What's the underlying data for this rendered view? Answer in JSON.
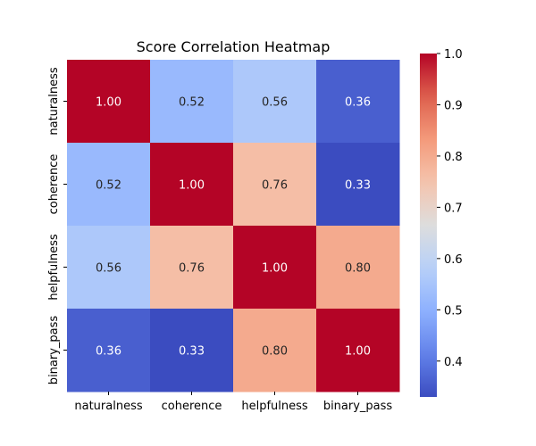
{
  "chart_data": {
    "type": "heatmap",
    "title": "Score Correlation Heatmap",
    "x_categories": [
      "naturalness",
      "coherence",
      "helpfulness",
      "binary_pass"
    ],
    "y_categories": [
      "naturalness",
      "coherence",
      "helpfulness",
      "binary_pass"
    ],
    "values": [
      [
        1.0,
        0.52,
        0.56,
        0.36
      ],
      [
        0.52,
        1.0,
        0.76,
        0.33
      ],
      [
        0.56,
        0.76,
        1.0,
        0.8
      ],
      [
        0.36,
        0.33,
        0.8,
        1.0
      ]
    ],
    "cell_labels": [
      [
        "1.00",
        "0.52",
        "0.56",
        "0.36"
      ],
      [
        "0.52",
        "1.00",
        "0.76",
        "0.33"
      ],
      [
        "0.56",
        "0.76",
        "1.00",
        "0.80"
      ],
      [
        "0.36",
        "0.33",
        "0.80",
        "1.00"
      ]
    ],
    "colorbar": {
      "min": 0.33,
      "max": 1.0,
      "ticks": [
        0.4,
        0.5,
        0.6,
        0.7,
        0.8,
        0.9,
        1.0
      ],
      "tick_labels": [
        "0.4",
        "0.5",
        "0.6",
        "0.7",
        "0.8",
        "0.9",
        "1.0"
      ],
      "colormap": "coolwarm"
    },
    "xlabel": "",
    "ylabel": "",
    "grid": false,
    "legend": "colorbar-right"
  }
}
